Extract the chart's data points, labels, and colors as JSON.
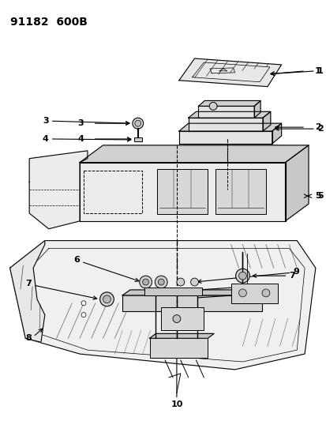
{
  "bg_color": "#ffffff",
  "line_color": "#000000",
  "fig_width": 4.14,
  "fig_height": 5.33,
  "dpi": 100,
  "header": "91182  600B",
  "header_fontsize": 10
}
